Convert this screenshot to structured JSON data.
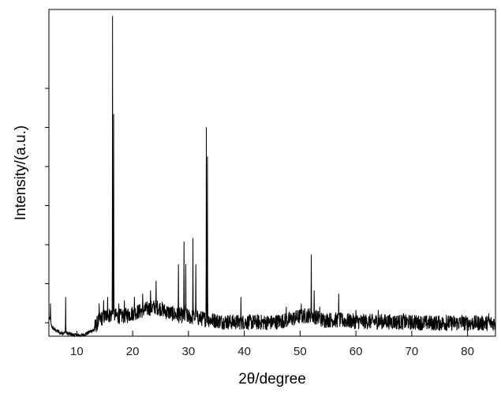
{
  "chart_data": {
    "type": "line",
    "title": "",
    "xlabel": "2θ/degree",
    "ylabel": "Intensity/(a.u.)",
    "xlim": [
      5,
      85
    ],
    "ylim": [
      0,
      100
    ],
    "x_ticks": [
      10,
      20,
      30,
      40,
      50,
      60,
      70,
      80
    ],
    "x_tick_labels": [
      "10",
      "20",
      "30",
      "40",
      "50",
      "60",
      "70",
      "80"
    ],
    "y_tick_labels_shown": false,
    "grid": false,
    "legend": "none",
    "line_color": "#000000",
    "series": [
      {
        "baseline": [
          [
            5.0,
            6
          ],
          [
            5.5,
            3
          ],
          [
            6.0,
            2
          ],
          [
            7.0,
            1
          ],
          [
            8.0,
            1
          ],
          [
            9.0,
            0.5
          ],
          [
            10.0,
            0.3
          ],
          [
            11.0,
            0.3
          ],
          [
            12.0,
            1
          ],
          [
            13.0,
            2
          ],
          [
            14.0,
            5
          ],
          [
            15.0,
            6
          ],
          [
            16.0,
            6.5
          ],
          [
            18.0,
            6
          ],
          [
            20.0,
            7
          ],
          [
            22.0,
            8
          ],
          [
            24.0,
            9
          ],
          [
            25.0,
            8.5
          ],
          [
            26.0,
            7.5
          ],
          [
            28.0,
            6.5
          ],
          [
            30.0,
            6
          ],
          [
            32.0,
            5.5
          ],
          [
            34.0,
            5
          ],
          [
            36.0,
            4.5
          ],
          [
            38.0,
            4.3
          ],
          [
            40.0,
            4.3
          ],
          [
            45.0,
            4.2
          ],
          [
            48.0,
            5
          ],
          [
            50.0,
            6
          ],
          [
            52.0,
            6.5
          ],
          [
            54.0,
            5
          ],
          [
            56.0,
            5
          ],
          [
            60.0,
            4.5
          ],
          [
            65.0,
            4.5
          ],
          [
            70.0,
            4.2
          ],
          [
            75.0,
            4
          ],
          [
            80.0,
            4
          ],
          [
            85.0,
            4
          ]
        ],
        "peaks": [
          [
            5.3,
            10
          ],
          [
            8.0,
            12
          ],
          [
            14.0,
            10
          ],
          [
            14.8,
            11
          ],
          [
            15.5,
            12
          ],
          [
            16.4,
            98
          ],
          [
            16.6,
            68
          ],
          [
            17.5,
            10
          ],
          [
            18.5,
            11
          ],
          [
            20.3,
            12
          ],
          [
            21.8,
            13
          ],
          [
            23.2,
            14
          ],
          [
            24.2,
            17
          ],
          [
            28.2,
            22
          ],
          [
            29.2,
            29
          ],
          [
            29.5,
            22
          ],
          [
            30.8,
            30
          ],
          [
            31.3,
            22
          ],
          [
            33.2,
            64
          ],
          [
            33.4,
            55
          ],
          [
            39.4,
            12
          ],
          [
            47.5,
            9
          ],
          [
            50.2,
            10
          ],
          [
            52.0,
            25
          ],
          [
            52.5,
            14
          ],
          [
            53.5,
            9
          ],
          [
            56.9,
            13
          ],
          [
            60.0,
            8
          ],
          [
            64.0,
            8
          ],
          [
            68.5,
            7
          ],
          [
            70.5,
            6.5
          ],
          [
            76.2,
            6.5
          ],
          [
            79.0,
            6.5
          ],
          [
            83.8,
            7
          ]
        ]
      }
    ]
  }
}
